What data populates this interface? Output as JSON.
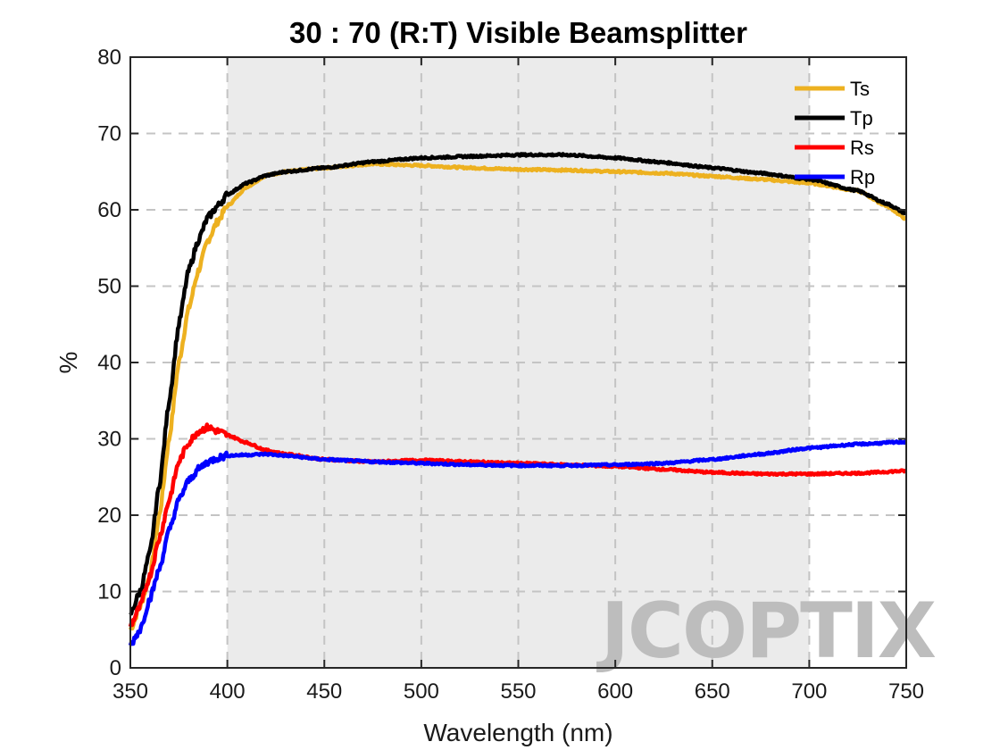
{
  "chart_data": {
    "type": "line",
    "title": "30 : 70 (R:T) Visible Beamsplitter",
    "xlabel": "Wavelength (nm)",
    "ylabel": "%",
    "xlim": [
      350,
      750
    ],
    "ylim": [
      0,
      80
    ],
    "xticks": [
      350,
      400,
      450,
      500,
      550,
      600,
      650,
      700,
      750
    ],
    "yticks": [
      0,
      10,
      20,
      30,
      40,
      50,
      60,
      70,
      80
    ],
    "grid": true,
    "shaded_region": [
      400,
      700
    ],
    "legend_position": "top-right",
    "watermark": "JCOPTIX",
    "series": [
      {
        "name": "Ts",
        "color": "#EDB120",
        "x": [
          350,
          355,
          360,
          365,
          370,
          375,
          380,
          385,
          390,
          395,
          400,
          410,
          420,
          430,
          450,
          475,
          500,
          525,
          550,
          575,
          600,
          625,
          650,
          675,
          700,
          725,
          740,
          750
        ],
        "y": [
          5,
          8,
          12,
          20,
          30,
          40,
          47,
          52,
          56,
          58.5,
          60.5,
          63,
          64.5,
          65,
          65.5,
          66,
          65.8,
          65.5,
          65.3,
          65.2,
          65,
          64.8,
          64.4,
          64,
          63.5,
          62.5,
          60.5,
          58.8
        ]
      },
      {
        "name": "Tp",
        "color": "#000000",
        "x": [
          350,
          355,
          360,
          365,
          370,
          375,
          380,
          385,
          390,
          395,
          400,
          410,
          420,
          430,
          450,
          475,
          500,
          525,
          550,
          575,
          600,
          625,
          650,
          675,
          700,
          725,
          740,
          750
        ],
        "y": [
          7,
          10,
          15,
          24,
          35,
          45,
          52,
          56,
          59,
          60.5,
          62,
          63.5,
          64.5,
          65,
          65.5,
          66.3,
          66.8,
          67,
          67.2,
          67.2,
          66.8,
          66.2,
          65.5,
          64.8,
          64,
          62.5,
          60.8,
          59.5
        ]
      },
      {
        "name": "Rs",
        "color": "#FF0000",
        "x": [
          350,
          355,
          360,
          365,
          370,
          375,
          380,
          385,
          390,
          395,
          400,
          410,
          420,
          430,
          450,
          475,
          500,
          525,
          550,
          575,
          600,
          625,
          650,
          675,
          700,
          725,
          750
        ],
        "y": [
          5.5,
          8,
          12,
          17,
          22,
          27,
          29.5,
          31,
          31.5,
          31,
          30.5,
          29.5,
          28.5,
          28,
          27.3,
          27,
          27.2,
          27,
          26.8,
          26.6,
          26.4,
          26,
          25.6,
          25.4,
          25.4,
          25.5,
          25.8
        ]
      },
      {
        "name": "Rp",
        "color": "#0000FF",
        "x": [
          350,
          355,
          360,
          365,
          370,
          375,
          380,
          385,
          390,
          395,
          400,
          410,
          420,
          430,
          450,
          475,
          500,
          525,
          550,
          575,
          600,
          625,
          650,
          675,
          700,
          725,
          750
        ],
        "y": [
          3,
          5,
          9,
          13,
          18,
          22,
          24.5,
          26,
          27,
          27.5,
          27.8,
          27.9,
          28,
          27.8,
          27.3,
          27,
          26.8,
          26.6,
          26.5,
          26.5,
          26.6,
          26.8,
          27.3,
          28,
          28.8,
          29.3,
          29.6
        ]
      }
    ]
  }
}
